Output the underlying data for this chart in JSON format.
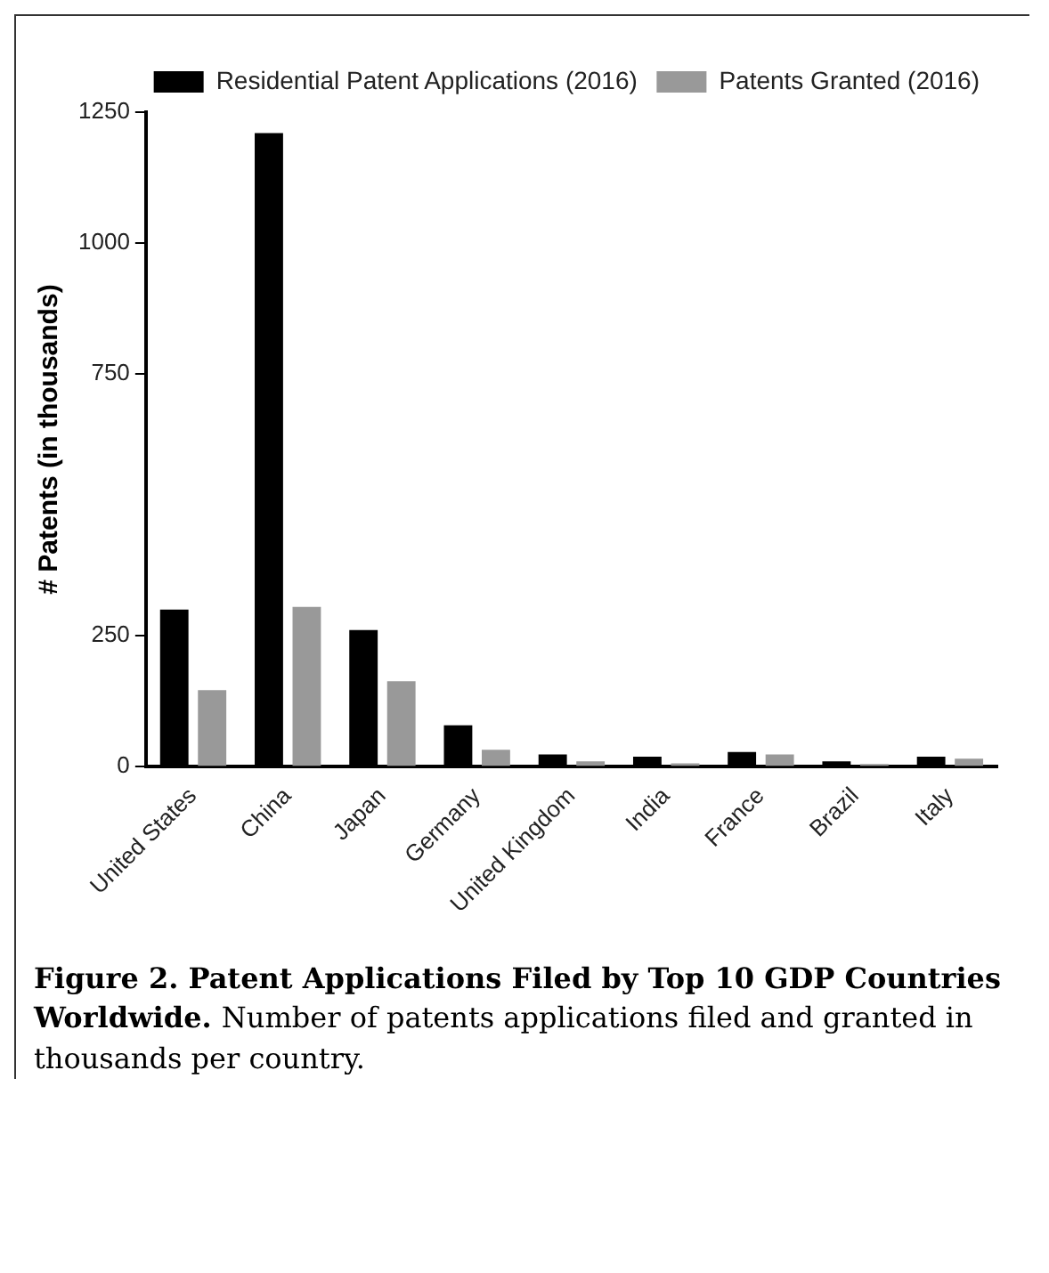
{
  "chart_data": {
    "type": "bar",
    "ylabel": "# Patents (in thousands)",
    "categories": [
      "United States",
      "China",
      "Japan",
      "Germany",
      "United Kingdom",
      "India",
      "France",
      "Brazil",
      "Italy"
    ],
    "series": [
      {
        "name": "Residential Patent Applications (2016)",
        "color": "#000000",
        "values": [
          300,
          1210,
          261,
          79,
          23,
          19,
          28,
          10,
          19
        ]
      },
      {
        "name": "Patents Granted (2016)",
        "color": "#999999",
        "values": [
          146,
          305,
          163,
          32,
          10,
          6,
          23,
          5,
          15
        ]
      }
    ],
    "ylim": [
      0,
      1250
    ],
    "yticks": [
      0,
      250,
      750,
      1000,
      1250
    ],
    "grid": false,
    "legend": "top right",
    "annotations": [
      "Figure 2. Patent Applications Filed by Top 10 GDP Countries Worldwide.",
      "Number of patents applications filed and granted in thousands per country."
    ]
  }
}
